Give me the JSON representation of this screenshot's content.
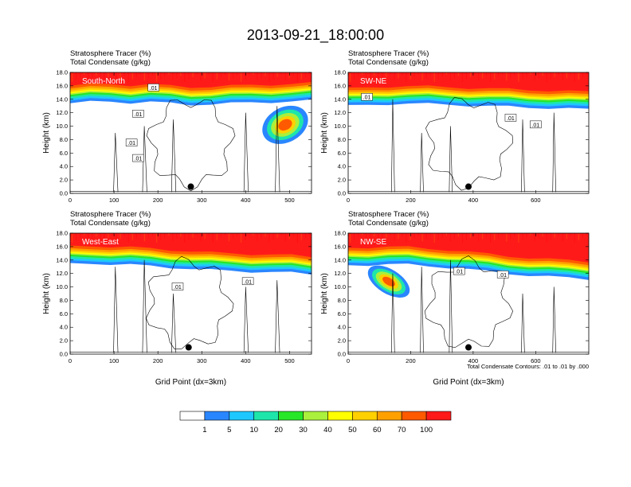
{
  "chart_data": {
    "type": "heatmap",
    "title": "2013-09-21_18:00:00",
    "xlabel": "Grid Point (dx=3km)",
    "ylabel": "Height (km)",
    "ylim": [
      0,
      18
    ],
    "y_ticks": [
      "0.0",
      "2.0",
      "4.0",
      "6.0",
      "8.0",
      "10.0",
      "12.0",
      "14.0",
      "16.0",
      "18.0"
    ],
    "shaded_field": "Stratosphere Tracer",
    "shaded_units": "(%)",
    "contour_field": "Total Condensate",
    "contour_units": "(g/kg)",
    "contour_note": "Total Condensate Contours: .01 to .01 by .000",
    "colorbar": {
      "levels": [
        "1",
        "5",
        "10",
        "20",
        "30",
        "40",
        "50",
        "60",
        "70",
        "100"
      ],
      "colors": [
        "#ffffff",
        "#2a86ff",
        "#1ec8ff",
        "#1ee6aa",
        "#28e628",
        "#aaf03c",
        "#ffff00",
        "#ffd000",
        "#ffa000",
        "#ff5a00",
        "#ff1a1a"
      ]
    },
    "panels": [
      {
        "label": "South-North",
        "xlim": [
          0,
          550
        ],
        "x_ticks": [
          "0",
          "100",
          "200",
          "300",
          "400",
          "500"
        ],
        "x_tick_values": [
          0,
          100,
          200,
          300,
          400,
          500
        ],
        "show_xlabel": false,
        "contour_labels": [
          ".01",
          ".01",
          ".01",
          ".01"
        ],
        "contour_label_pos": [
          [
            190,
            15.7
          ],
          [
            155,
            11.8
          ],
          [
            140,
            7.5
          ],
          [
            155,
            5.2
          ]
        ],
        "marker_x": 275,
        "marker_y": 1.0,
        "tropopause_km": [
          15.0,
          15.2,
          15.3,
          15.1,
          15.2,
          15.0,
          14.8,
          14.9,
          15.0,
          15.1,
          15.2,
          15.3,
          15.4
        ],
        "plume": {
          "x": 490,
          "y": 10.2,
          "rx": 55,
          "ry": 2.6
        }
      },
      {
        "label": "SW-NE",
        "xlim": [
          0,
          770
        ],
        "x_ticks": [
          "0",
          "200",
          "400",
          "600"
        ],
        "x_tick_values": [
          0,
          200,
          400,
          600
        ],
        "show_xlabel": false,
        "contour_labels": [
          ".01",
          ".01",
          ".01"
        ],
        "contour_label_pos": [
          [
            60,
            14.3
          ],
          [
            520,
            11.2
          ],
          [
            600,
            10.2
          ]
        ],
        "marker_x": 385,
        "marker_y": 1.0,
        "tropopause_km": [
          14.6,
          14.7,
          14.9,
          15.0,
          14.9,
          14.8,
          14.7,
          14.6,
          14.5,
          14.4,
          14.3,
          14.2,
          14.1
        ]
      },
      {
        "label": "West-East",
        "xlim": [
          0,
          550
        ],
        "x_ticks": [
          "0",
          "100",
          "200",
          "300",
          "400",
          "500"
        ],
        "x_tick_values": [
          0,
          100,
          200,
          300,
          400,
          500
        ],
        "show_xlabel": true,
        "contour_labels": [
          ".01",
          ".01"
        ],
        "contour_label_pos": [
          [
            245,
            10.0
          ],
          [
            405,
            10.8
          ]
        ],
        "marker_x": 270,
        "marker_y": 1.0,
        "tropopause_km": [
          15.0,
          15.1,
          15.0,
          14.9,
          14.7,
          14.5,
          14.3,
          14.1,
          14.0,
          13.9,
          13.8,
          13.7,
          13.5
        ]
      },
      {
        "label": "NW-SE",
        "xlim": [
          0,
          770
        ],
        "x_ticks": [
          "0",
          "200",
          "400",
          "600"
        ],
        "x_tick_values": [
          0,
          200,
          400,
          600
        ],
        "show_xlabel": true,
        "contour_labels": [
          ".01",
          ".01"
        ],
        "contour_label_pos": [
          [
            355,
            12.3
          ],
          [
            495,
            11.8
          ]
        ],
        "marker_x": 385,
        "marker_y": 1.0,
        "tropopause_km": [
          14.8,
          14.9,
          15.0,
          14.9,
          14.7,
          14.5,
          14.2,
          13.9,
          13.6,
          13.3,
          13.1,
          13.0,
          12.8
        ],
        "plume": {
          "x": 130,
          "y": 10.8,
          "rx": 75,
          "ry": 1.8
        }
      }
    ]
  }
}
